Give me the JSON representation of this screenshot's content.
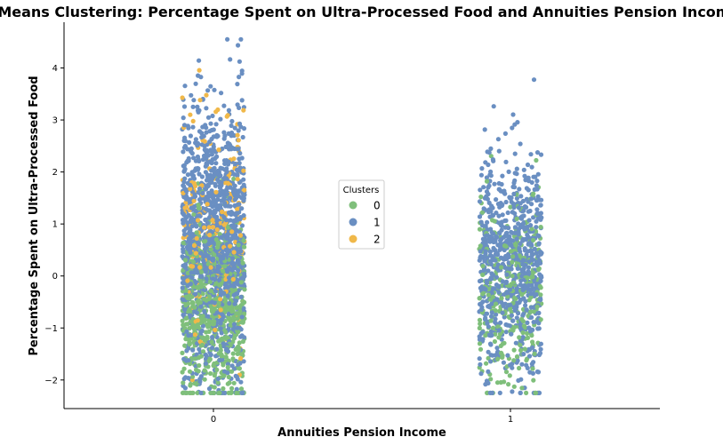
{
  "chart_data": {
    "type": "scatter",
    "style": "strip (jittered categorical scatter)",
    "title": "K-Means Clustering: Percentage Spent on Ultra-Processed Food and Annuities Pension Income",
    "xlabel": "Annuities Pension Income",
    "ylabel": "Percentage Spent on Ultra-Processed Food",
    "categories": [
      "0",
      "1"
    ],
    "x_ticks": [
      "0",
      "1"
    ],
    "y_ticks": [
      -2,
      -1,
      0,
      1,
      2,
      3,
      4
    ],
    "y_tick_labels": [
      "−2",
      "−1",
      "0",
      "1",
      "2",
      "3",
      "4"
    ],
    "ylim": [
      -2.55,
      4.88
    ],
    "grid": false,
    "legend": {
      "title": "Clusters",
      "placement": "center",
      "entries": [
        {
          "label": "0",
          "color": "#7fbf7b"
        },
        {
          "label": "1",
          "color": "#6a8fc2"
        },
        {
          "label": "2",
          "color": "#f0b849"
        }
      ]
    },
    "series": [
      {
        "cluster": "0",
        "color": "#7fbf7b",
        "distribution": [
          {
            "category": "0",
            "count": 700,
            "y_range": [
              -2.25,
              3.7
            ],
            "center": -0.6,
            "spread": 0.9
          },
          {
            "category": "1",
            "count": 320,
            "y_range": [
              -2.25,
              2.7
            ],
            "center": -0.4,
            "spread": 0.9
          }
        ]
      },
      {
        "cluster": "1",
        "color": "#6a8fc2",
        "distribution": [
          {
            "category": "0",
            "count": 1300,
            "y_range": [
              -2.25,
              4.55
            ],
            "center": 0.7,
            "spread": 1.3
          },
          {
            "category": "1",
            "count": 750,
            "y_range": [
              -2.25,
              4.0
            ],
            "center": 0.2,
            "spread": 1.1
          }
        ]
      },
      {
        "cluster": "2",
        "color": "#f0b849",
        "distribution": [
          {
            "category": "0",
            "count": 220,
            "y_range": [
              -2.25,
              4.55
            ],
            "center": 0.8,
            "spread": 1.1
          }
        ]
      }
    ]
  }
}
